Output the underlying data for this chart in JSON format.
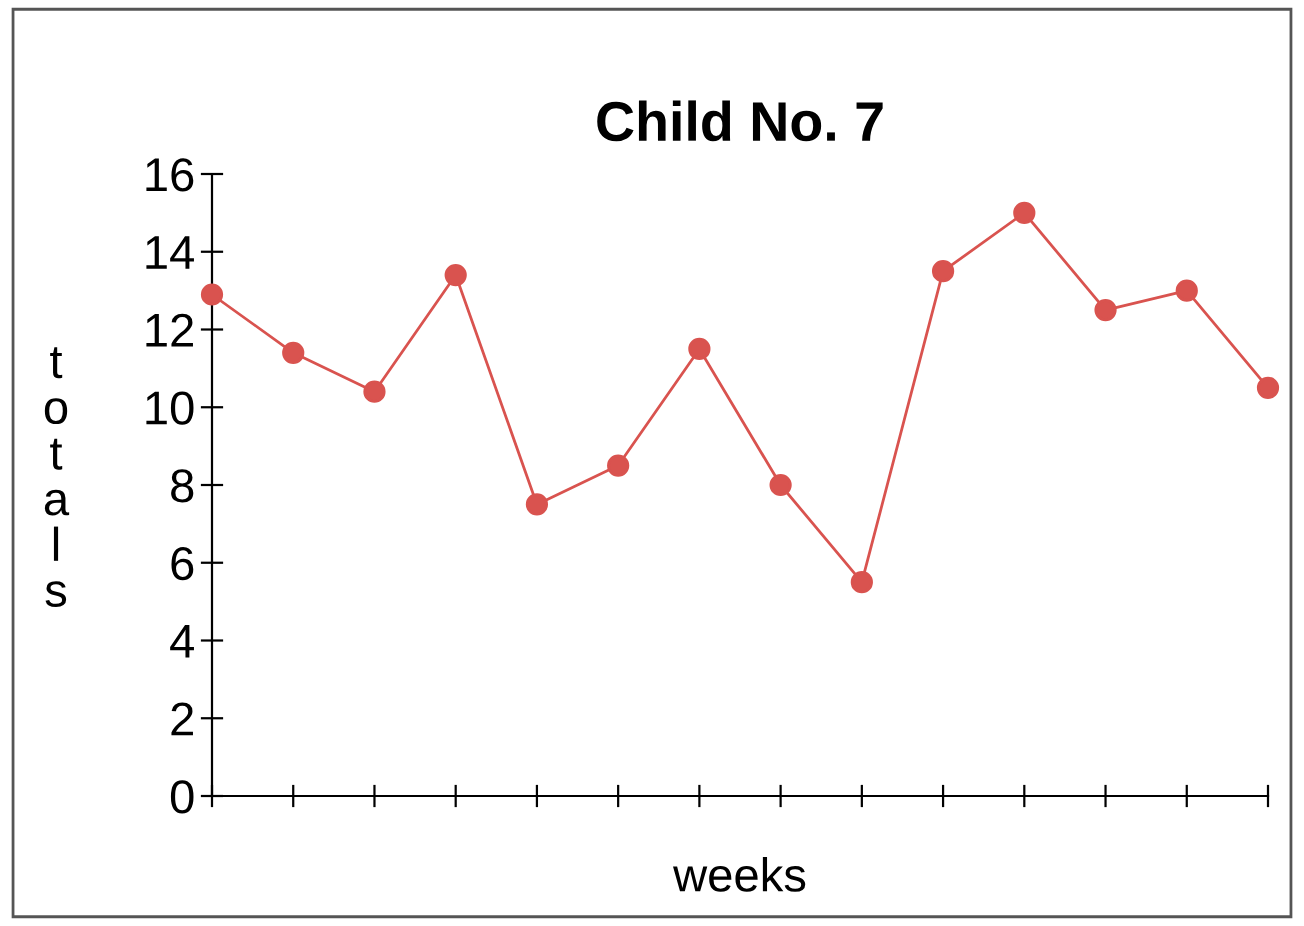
{
  "chart_data": {
    "type": "line",
    "title": "Child No. 7",
    "xlabel": "weeks",
    "ylabel": "totals",
    "categories": [
      null,
      null,
      null,
      null,
      null,
      null,
      null,
      null,
      null,
      null,
      null,
      null,
      null,
      null
    ],
    "series": [
      {
        "color": "#d9534f",
        "values": [
          12.9,
          11.4,
          10.4,
          13.4,
          7.5,
          8.5,
          11.5,
          8.0,
          5.5,
          13.5,
          15.0,
          12.5,
          13.0,
          10.5
        ]
      }
    ],
    "ylim": [
      0,
      16
    ],
    "yticks": [
      0,
      2,
      4,
      6,
      8,
      10,
      12,
      14,
      16
    ],
    "tick_labels": "y",
    "grid": false,
    "legend": false,
    "marker": "circle",
    "line_style": "solid"
  }
}
